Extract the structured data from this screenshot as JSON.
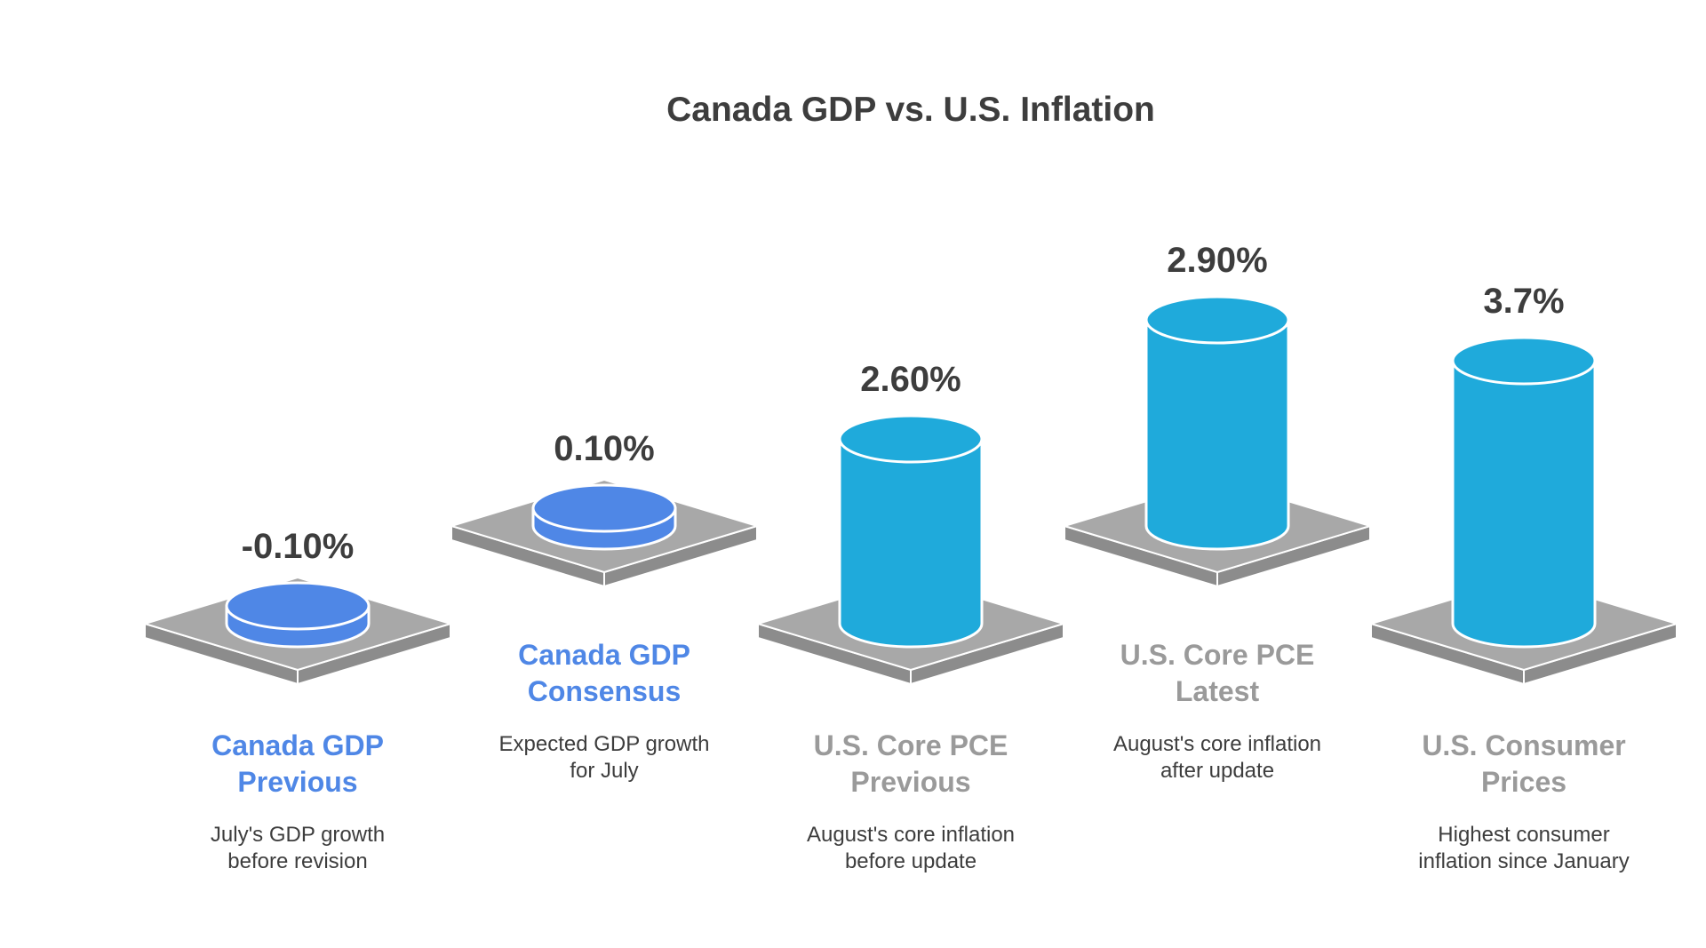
{
  "chart_data": {
    "type": "bar",
    "title": "Canada GDP vs. U.S. Inflation",
    "categories": [
      "Canada GDP Previous",
      "Canada GDP Consensus",
      "U.S. Core PCE Previous",
      "U.S. Core PCE Latest",
      "U.S. Consumer Prices"
    ],
    "values": [
      -0.1,
      0.1,
      2.6,
      2.9,
      3.7
    ],
    "value_labels": [
      "-0.10%",
      "0.10%",
      "2.60%",
      "2.90%",
      "3.7%"
    ],
    "category_lines": [
      [
        "Canada GDP",
        "Previous"
      ],
      [
        "Canada GDP",
        "Consensus"
      ],
      [
        "U.S. Core PCE",
        "Previous"
      ],
      [
        "U.S. Core PCE",
        "Latest"
      ],
      [
        "U.S. Consumer",
        "Prices"
      ]
    ],
    "descriptions": [
      [
        "July's GDP growth",
        "before revision"
      ],
      [
        "Expected GDP growth",
        "for July"
      ],
      [
        "August's core inflation",
        "before update"
      ],
      [
        "August's core inflation",
        "after update"
      ],
      [
        "Highest consumer",
        "inflation since January"
      ]
    ],
    "groups": [
      "gdp",
      "gdp",
      "inflation",
      "inflation",
      "inflation"
    ],
    "colors": {
      "gdp_fill": "#4f87e6",
      "inflation_fill": "#1faadb",
      "gdp_label": "#4f87e6",
      "inflation_label": "#9a9a9a",
      "platform_top": "#a8a8a8",
      "platform_side": "#8c8c8c",
      "platform_stroke": "#ffffff"
    },
    "legend": "none",
    "grid": false
  }
}
